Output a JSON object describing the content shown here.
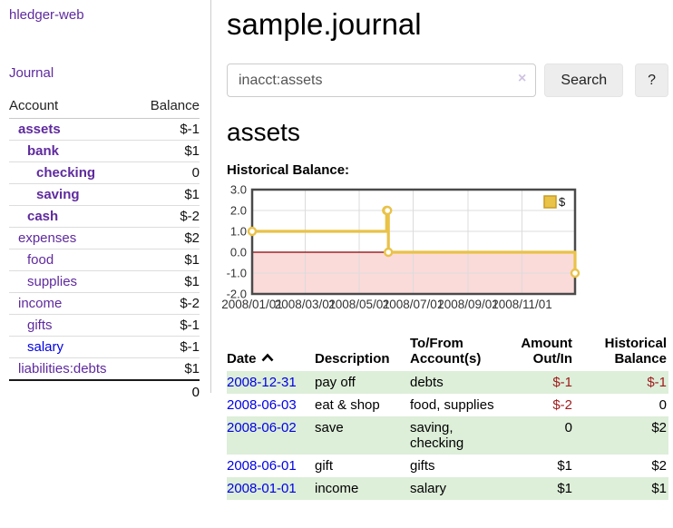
{
  "colors": {
    "purple": "#5f2a9e",
    "blue_link": "#0000e6",
    "neg_dark": "#9e1a1a",
    "neg_light": "#bd6d70",
    "row_green": "#ddeed9",
    "chart_line": "#e9c248",
    "chart_line_edge": "#c79c23",
    "chart_negative_fill": "#fbdada",
    "chart_zero_line": "#8b0000",
    "chart_grid": "#dcdcdc",
    "chart_border": "#4a4a4a"
  },
  "sidebar": {
    "brand": "hledger-web",
    "journal_link": "Journal",
    "account_header": "Account",
    "balance_header": "Balance",
    "accounts": [
      {
        "name": "assets",
        "balance": "$-1",
        "level": 1,
        "bold": true,
        "neg": "dark"
      },
      {
        "name": "bank",
        "balance": "$1",
        "level": 2,
        "bold": true,
        "neg": "none"
      },
      {
        "name": "checking",
        "balance": "0",
        "level": 3,
        "bold": true,
        "neg": "none"
      },
      {
        "name": "saving",
        "balance": "$1",
        "level": 3,
        "bold": true,
        "neg": "none"
      },
      {
        "name": "cash",
        "balance": "$-2",
        "level": 2,
        "bold": true,
        "neg": "dark"
      },
      {
        "name": "expenses",
        "balance": "$2",
        "level": 1,
        "bold": false,
        "neg": "none"
      },
      {
        "name": "food",
        "balance": "$1",
        "level": 2,
        "bold": false,
        "neg": "none"
      },
      {
        "name": "supplies",
        "balance": "$1",
        "level": 2,
        "bold": false,
        "neg": "none"
      },
      {
        "name": "income",
        "balance": "$-2",
        "level": 1,
        "bold": false,
        "neg": "light"
      },
      {
        "name": "gifts",
        "balance": "$-1",
        "level": 2,
        "bold": false,
        "neg": "light"
      },
      {
        "name": "salary",
        "balance": "$-1",
        "level": 2,
        "bold": false,
        "neg": "light",
        "link_color": "blue"
      },
      {
        "name": "liabilities:debts",
        "balance": "$1",
        "level": 1,
        "bold": false,
        "neg": "none"
      }
    ],
    "total": "0"
  },
  "header": {
    "title": "sample.journal"
  },
  "search": {
    "value": "inacct:assets",
    "clear_icon": "×",
    "button": "Search",
    "help_button": "?"
  },
  "account_page": {
    "heading": "assets",
    "chart_label": "Historical Balance:"
  },
  "chart_data": {
    "type": "line",
    "step": true,
    "title": "Historical Balance",
    "series": [
      {
        "name": "$",
        "points": [
          [
            "2008-01-01",
            1
          ],
          [
            "2008-06-01",
            2
          ],
          [
            "2008-06-02",
            2
          ],
          [
            "2008-06-03",
            0
          ],
          [
            "2008-12-31",
            -1
          ]
        ]
      }
    ],
    "xlim": [
      "2008-01-01",
      "2008-12-31"
    ],
    "ylim": [
      -2,
      3
    ],
    "x_ticks": [
      "2008/01/01",
      "2008/03/01",
      "2008/05/01",
      "2008/07/01",
      "2008/09/01",
      "2008/11/01"
    ],
    "y_ticks": [
      3.0,
      2.0,
      1.0,
      0.0,
      -1.0,
      -2.0
    ],
    "grid": true,
    "negative_region_shaded": true,
    "legend": "$",
    "legend_position": "top-right"
  },
  "register": {
    "headers": [
      "Date",
      "Description",
      "To/From Account(s)",
      "Amount Out/In",
      "Historical Balance"
    ],
    "sort_column": "Date",
    "sort_icon": "chevron-up",
    "rows": [
      {
        "date": "2008-12-31",
        "description": "pay off",
        "accounts": "debts",
        "amount": "$-1",
        "amount_neg": true,
        "balance": "$-1",
        "balance_neg": true,
        "shaded": true
      },
      {
        "date": "2008-06-03",
        "description": "eat & shop",
        "accounts": "food, supplies",
        "amount": "$-2",
        "amount_neg": true,
        "balance": "0",
        "balance_neg": false,
        "shaded": false
      },
      {
        "date": "2008-06-02",
        "description": "save",
        "accounts": "saving, checking",
        "amount": "0",
        "amount_neg": false,
        "balance": "$2",
        "balance_neg": false,
        "shaded": true
      },
      {
        "date": "2008-06-01",
        "description": "gift",
        "accounts": "gifts",
        "amount": "$1",
        "amount_neg": false,
        "balance": "$2",
        "balance_neg": false,
        "shaded": false
      },
      {
        "date": "2008-01-01",
        "description": "income",
        "accounts": "salary",
        "amount": "$1",
        "amount_neg": false,
        "balance": "$1",
        "balance_neg": false,
        "shaded": true
      }
    ]
  }
}
